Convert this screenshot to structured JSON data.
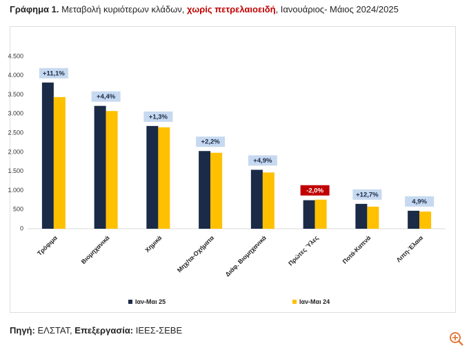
{
  "chart_data": {
    "type": "bar",
    "title_label": "Γράφημα 1.",
    "title": "Μεταβολή κυριότερων κλάδων,",
    "title_highlight": "χωρίς πετρελαιοειδή",
    "title_end": ", Ιανουάριος- Μάιος 2024/2025",
    "categories": [
      "Τρόφιμα",
      "Βιομηχανικά",
      "Χημικά",
      "Μηχ/τα-Οχήματα",
      "Διάφ. Βιομηχανικά",
      "Πρώτες Ύλες",
      "Ποτά-Καπνά",
      "Λιπη-Έλαια"
    ],
    "series": [
      {
        "name": "Ιαν-Μαι 25",
        "color": "#1b2a47",
        "values": [
          3820,
          3210,
          2685,
          2030,
          1540,
          745,
          650,
          470
        ]
      },
      {
        "name": "Ιαν-Μαι 24",
        "color": "#ffc000",
        "values": [
          3440,
          3075,
          2650,
          1985,
          1470,
          760,
          577,
          448
        ]
      }
    ],
    "annotations": [
      "+11,1%",
      "+4,4%",
      "+1,3%",
      "+2,2%",
      "+4,9%",
      "-2,0%",
      "+12,7%",
      "4,9%"
    ],
    "annotation_colors": [
      "#c6d9f0",
      "#c6d9f0",
      "#c6d9f0",
      "#c6d9f0",
      "#c6d9f0",
      "#c00000",
      "#c6d9f0",
      "#c6d9f0"
    ],
    "ylim": [
      0,
      4500
    ],
    "yticks": [
      0,
      500,
      {
        "value": 1000,
        "label": "1.000"
      },
      {
        "value": 1500,
        "label": "1.500"
      },
      {
        "value": 2000,
        "label": "2.000"
      },
      {
        "value": 2500,
        "label": "2.500"
      },
      {
        "value": 3000,
        "label": "3.000"
      },
      {
        "value": 3500,
        "label": "3.500"
      },
      {
        "value": 4000,
        "label": "4.000"
      },
      {
        "value": 4500,
        "label": "4.500"
      }
    ],
    "grid": false
  },
  "source": {
    "source_label": "Πηγή:",
    "source": "ΕΛΣΤΑΤ,",
    "processing_label": "Επεξεργασία:",
    "processing": "ΙΕΕΣ-ΣΕΒΕ"
  }
}
